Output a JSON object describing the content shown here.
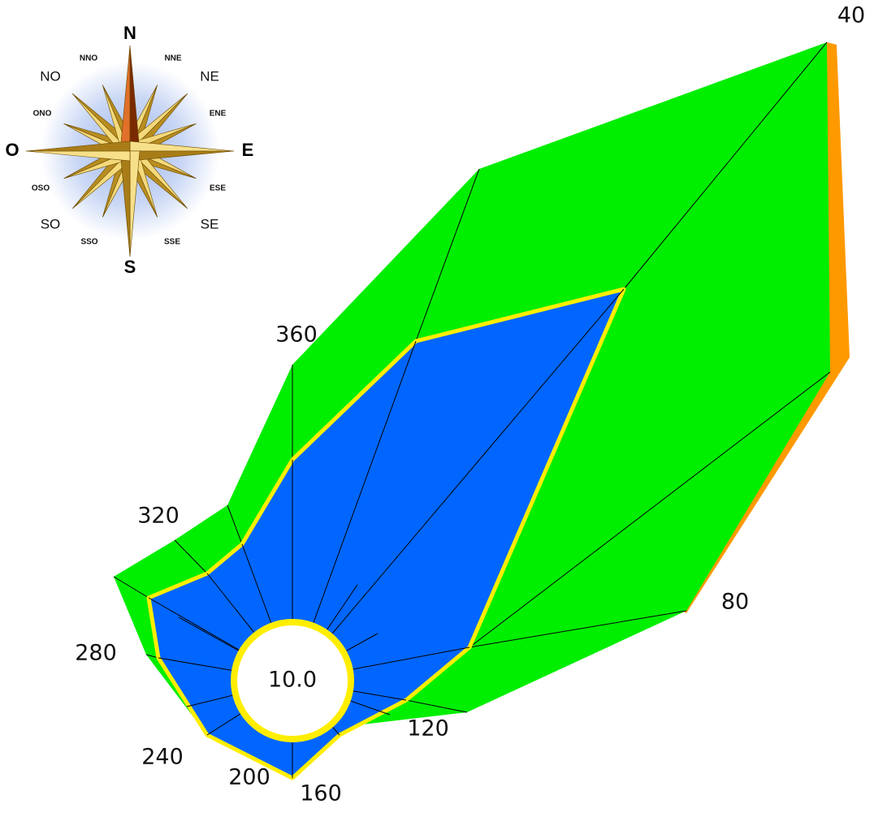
{
  "compass": {
    "labels": [
      "N",
      "NNE",
      "NE",
      "ENE",
      "E",
      "ESE",
      "SE",
      "SSE",
      "S",
      "SSO",
      "SO",
      "OSO",
      "O",
      "ONO",
      "NO",
      "NNO"
    ]
  },
  "rose": {
    "direction_labels": [
      "40",
      "80",
      "120",
      "160",
      "200",
      "240",
      "280",
      "320",
      "360"
    ],
    "center_label": "10.0"
  }
}
